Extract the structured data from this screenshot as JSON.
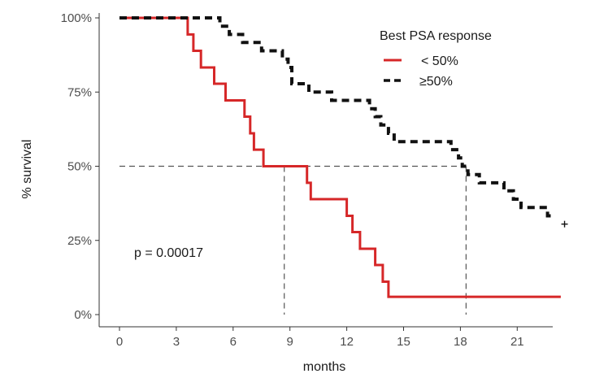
{
  "chart_data": {
    "type": "line",
    "title": "",
    "xlabel": "months",
    "ylabel": "% survival",
    "xlim": [
      -1.2,
      23.3
    ],
    "ylim": [
      0,
      100
    ],
    "x_ticks": [
      0,
      3,
      6,
      9,
      12,
      15,
      18,
      21
    ],
    "y_ticks": [
      0,
      25,
      50,
      75,
      100
    ],
    "y_tick_labels": [
      "0%",
      "25%",
      "50%",
      "75%",
      "100%"
    ],
    "grid": false,
    "legend": {
      "title": "Best PSA response",
      "placement": "top-right",
      "entries": [
        "< 50%",
        "≥50%"
      ]
    },
    "annotation": "p = 0.00017",
    "median_reference": {
      "y": 50,
      "x_values": [
        8.7,
        18.3
      ]
    },
    "series": [
      {
        "name": "< 50%",
        "color": "#d62728",
        "style": "solid",
        "points": [
          [
            0,
            100
          ],
          [
            3.6,
            100
          ],
          [
            3.6,
            94.4
          ],
          [
            3.9,
            94.4
          ],
          [
            3.9,
            88.9
          ],
          [
            4.3,
            88.9
          ],
          [
            4.3,
            83.3
          ],
          [
            5.0,
            83.3
          ],
          [
            5.0,
            77.8
          ],
          [
            5.6,
            77.8
          ],
          [
            5.6,
            72.2
          ],
          [
            6.6,
            72.2
          ],
          [
            6.6,
            66.7
          ],
          [
            6.9,
            66.7
          ],
          [
            6.9,
            61.1
          ],
          [
            7.1,
            61.1
          ],
          [
            7.1,
            55.6
          ],
          [
            7.6,
            55.6
          ],
          [
            7.6,
            50.0
          ],
          [
            9.9,
            50.0
          ],
          [
            9.9,
            44.4
          ],
          [
            10.1,
            44.4
          ],
          [
            10.1,
            38.9
          ],
          [
            12.0,
            38.9
          ],
          [
            12.0,
            33.3
          ],
          [
            12.3,
            33.3
          ],
          [
            12.3,
            27.8
          ],
          [
            12.7,
            27.8
          ],
          [
            12.7,
            22.2
          ],
          [
            13.5,
            22.2
          ],
          [
            13.5,
            16.7
          ],
          [
            13.9,
            16.7
          ],
          [
            13.9,
            11.1
          ],
          [
            14.2,
            11.1
          ],
          [
            14.2,
            6.0
          ],
          [
            23.3,
            6.0
          ]
        ]
      },
      {
        "name": "≥50%",
        "color": "#111111",
        "style": "dashed",
        "points": [
          [
            0,
            100
          ],
          [
            5.3,
            100
          ],
          [
            5.3,
            97.2
          ],
          [
            5.8,
            97.2
          ],
          [
            5.8,
            94.4
          ],
          [
            6.5,
            94.4
          ],
          [
            6.5,
            91.7
          ],
          [
            7.5,
            91.7
          ],
          [
            7.5,
            88.9
          ],
          [
            8.6,
            88.9
          ],
          [
            8.6,
            86.1
          ],
          [
            8.9,
            86.1
          ],
          [
            8.9,
            83.3
          ],
          [
            9.1,
            83.3
          ],
          [
            9.1,
            77.8
          ],
          [
            10.0,
            77.8
          ],
          [
            10.0,
            75.0
          ],
          [
            11.2,
            75.0
          ],
          [
            11.2,
            72.2
          ],
          [
            13.2,
            72.2
          ],
          [
            13.2,
            69.4
          ],
          [
            13.5,
            69.4
          ],
          [
            13.5,
            66.7
          ],
          [
            13.8,
            66.7
          ],
          [
            13.8,
            63.9
          ],
          [
            14.2,
            63.9
          ],
          [
            14.2,
            61.1
          ],
          [
            14.5,
            61.1
          ],
          [
            14.5,
            58.3
          ],
          [
            17.5,
            58.3
          ],
          [
            17.5,
            55.6
          ],
          [
            17.9,
            55.6
          ],
          [
            17.9,
            52.8
          ],
          [
            18.1,
            52.8
          ],
          [
            18.1,
            50.0
          ],
          [
            18.4,
            50.0
          ],
          [
            18.4,
            47.2
          ],
          [
            19.0,
            47.2
          ],
          [
            19.0,
            44.4
          ],
          [
            20.3,
            44.4
          ],
          [
            20.3,
            41.7
          ],
          [
            20.8,
            41.7
          ],
          [
            20.8,
            38.9
          ],
          [
            21.2,
            38.9
          ],
          [
            21.2,
            36.1
          ],
          [
            22.6,
            36.1
          ],
          [
            22.6,
            33.3
          ],
          [
            23.0,
            33.3
          ]
        ],
        "censor": [
          [
            23.5,
            30.5
          ]
        ]
      }
    ]
  }
}
